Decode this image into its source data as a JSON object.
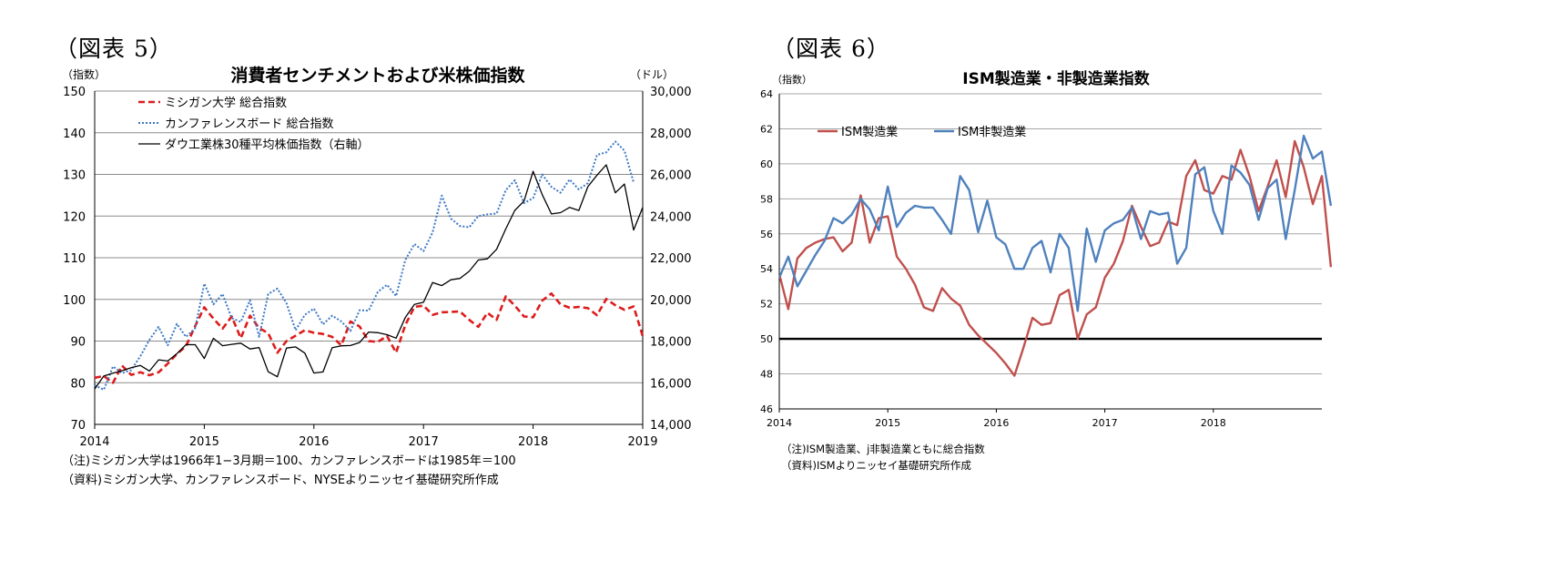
{
  "figures": [
    {
      "label": "（図表 5）",
      "notes": [
        "（注)ミシガン大学は1966年1−3月期＝100、カンファレンスボードは1985年＝100",
        "（資料)ミシガン大学、カンファレンスボード、NYSEよりニッセイ基礎研究所作成"
      ]
    },
    {
      "label": "（図表 6）",
      "notes": [
        "（注)ISM製造業、j非製造業ともに総合指数",
        "（資料)ISMよりニッセイ基礎研究所作成"
      ]
    }
  ],
  "chart_data": [
    {
      "type": "line",
      "title": "消費者センチメントおよび米株価指数",
      "ylabel": "（指数）",
      "y2label": "（ドル）",
      "xlim": [
        2014,
        2019
      ],
      "ylim": [
        70,
        150
      ],
      "y2lim": [
        14000,
        30000
      ],
      "x_ticks": [
        "2014",
        "2015",
        "2016",
        "2017",
        "2018",
        "2019"
      ],
      "y_ticks": [
        "70",
        "80",
        "90",
        "100",
        "110",
        "120",
        "130",
        "140",
        "150"
      ],
      "y2_ticks": [
        "14,000",
        "16,000",
        "18,000",
        "20,000",
        "22,000",
        "24,000",
        "26,000",
        "28,000",
        "30,000"
      ],
      "grid": true,
      "legend_position": "top-left",
      "start": 2014.0,
      "step": 0.0833333,
      "colors": {
        "michigan": "#dd1c1c",
        "conference": "#3c78c4",
        "dow": "#000000"
      },
      "series": [
        {
          "name": "ミシガン大学 総合指数",
          "axis": "left",
          "style": "dashed",
          "values": [
            81.2,
            81.6,
            80.0,
            84.1,
            81.9,
            82.5,
            81.8,
            82.5,
            84.6,
            86.9,
            88.8,
            93.6,
            98.1,
            95.4,
            93.0,
            95.9,
            90.7,
            96.1,
            93.1,
            91.9,
            87.2,
            90.0,
            91.3,
            92.6,
            92.0,
            91.7,
            91.0,
            89.0,
            94.7,
            93.5,
            90.0,
            89.8,
            91.2,
            87.2,
            93.8,
            98.2,
            98.5,
            96.3,
            96.9,
            97.0,
            97.1,
            95.1,
            93.4,
            96.8,
            95.1,
            100.7,
            98.5,
            95.9,
            95.7,
            99.7,
            101.4,
            98.8,
            98.0,
            98.2,
            97.9,
            96.2,
            100.1,
            98.6,
            97.5,
            98.3,
            91.2
          ]
        },
        {
          "name": "カンファレンスボード 総合指数",
          "axis": "left",
          "style": "dotted",
          "values": [
            79.4,
            78.3,
            83.9,
            82.3,
            83.0,
            86.4,
            90.3,
            93.4,
            89.0,
            94.1,
            91.0,
            93.1,
            103.8,
            98.8,
            101.3,
            95.5,
            94.6,
            99.8,
            91.0,
            101.3,
            102.6,
            99.1,
            92.6,
            96.3,
            97.8,
            94.0,
            96.1,
            94.7,
            92.4,
            97.4,
            97.3,
            101.8,
            103.5,
            100.8,
            109.4,
            113.3,
            111.6,
            116.1,
            124.9,
            119.4,
            117.6,
            117.3,
            120.0,
            120.4,
            120.6,
            126.2,
            128.6,
            123.1,
            124.3,
            130.0,
            127.0,
            125.6,
            128.8,
            126.4,
            127.9,
            134.7,
            135.3,
            137.9,
            135.7,
            128.1
          ]
        },
        {
          "name": "ダウ工業株30種平均株価指数（右軸）",
          "axis": "right",
          "style": "solid",
          "values": [
            15699,
            16322,
            16458,
            16581,
            16717,
            16827,
            16563,
            17098,
            17043,
            17391,
            17828,
            17823,
            17165,
            18133,
            17776,
            17841,
            17899,
            17620,
            17690,
            16528,
            16285,
            17664,
            17720,
            17425,
            16466,
            16517,
            17685,
            17774,
            17787,
            17930,
            18432,
            18401,
            18308,
            18142,
            19124,
            19763,
            19864,
            20812,
            20663,
            20940,
            21009,
            21350,
            21891,
            21948,
            22405,
            23377,
            24272,
            24719,
            26149,
            25029,
            24103,
            24163,
            24416,
            24271,
            25415,
            25965,
            26458,
            25116,
            25538,
            23327,
            24415
          ]
        }
      ]
    },
    {
      "type": "line",
      "title": "ISM製造業・非製造業指数",
      "ylabel": "（指数）",
      "xlim": [
        2014,
        2019
      ],
      "ylim": [
        46,
        64
      ],
      "x_ticks": [
        "2014",
        "2015",
        "2016",
        "2017",
        "2018"
      ],
      "y_ticks": [
        "46",
        "48",
        "50",
        "52",
        "54",
        "56",
        "58",
        "60",
        "62",
        "64"
      ],
      "reference_line": 50,
      "grid": true,
      "legend_position": "top-left",
      "start": 2014.0,
      "step": 0.0833333,
      "colors": {
        "manufacturing": "#c0504d",
        "non_manufacturing": "#4f81bd",
        "reference": "#000000"
      },
      "series": [
        {
          "name": "ISM製造業",
          "values": [
            53.7,
            51.7,
            54.6,
            55.2,
            55.5,
            55.7,
            55.8,
            55.0,
            55.5,
            58.2,
            55.5,
            56.9,
            57.0,
            54.7,
            54.0,
            53.1,
            51.8,
            51.6,
            52.9,
            52.3,
            51.9,
            50.8,
            50.2,
            49.7,
            49.2,
            48.6,
            47.9,
            49.5,
            51.2,
            50.8,
            50.9,
            52.5,
            52.8,
            50.0,
            51.4,
            51.8,
            53.5,
            54.3,
            55.6,
            57.6,
            56.4,
            55.3,
            55.5,
            56.7,
            56.5,
            59.3,
            60.2,
            58.5,
            58.3,
            59.3,
            59.1,
            60.8,
            59.3,
            57.3,
            58.7,
            60.2,
            58.1,
            61.3,
            59.8,
            57.7,
            59.3,
            54.1
          ]
        },
        {
          "name": "ISM非製造業",
          "values": [
            53.5,
            54.7,
            53.0,
            53.9,
            54.8,
            55.6,
            56.9,
            56.6,
            57.1,
            58.0,
            57.4,
            56.2,
            58.7,
            56.4,
            57.2,
            57.6,
            57.5,
            57.5,
            56.8,
            56.0,
            59.3,
            58.5,
            56.1,
            57.9,
            55.8,
            55.4,
            54.0,
            54.0,
            55.2,
            55.6,
            53.8,
            56.0,
            55.2,
            51.6,
            56.3,
            54.4,
            56.2,
            56.6,
            56.8,
            57.5,
            55.7,
            57.3,
            57.1,
            57.2,
            54.3,
            55.2,
            59.4,
            59.8,
            57.3,
            56.0,
            59.9,
            59.5,
            58.8,
            56.8,
            58.6,
            59.1,
            55.7,
            58.5,
            61.6,
            60.3,
            60.7,
            57.6
          ]
        }
      ]
    }
  ]
}
